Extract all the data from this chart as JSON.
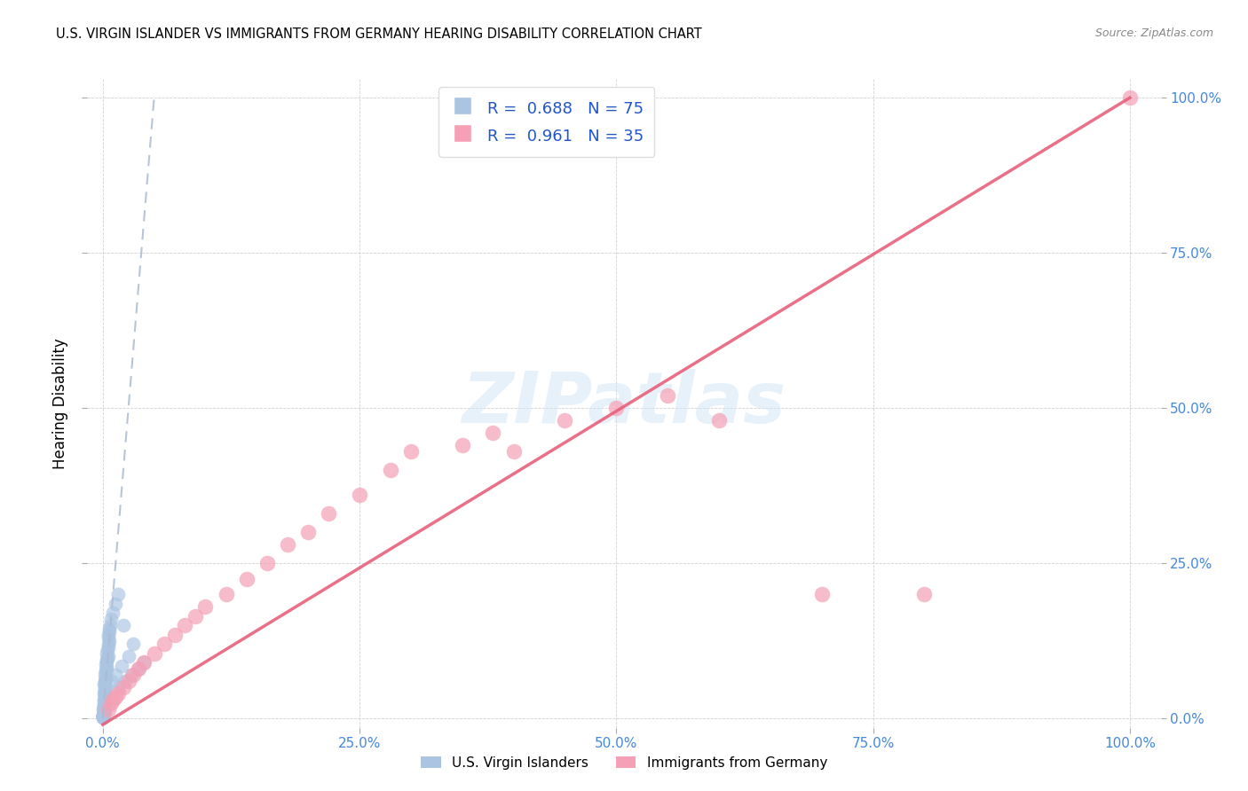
{
  "title": "U.S. VIRGIN ISLANDER VS IMMIGRANTS FROM GERMANY HEARING DISABILITY CORRELATION CHART",
  "source": "Source: ZipAtlas.com",
  "ylabel": "Hearing Disability",
  "legend_labels": [
    "U.S. Virgin Islanders",
    "Immigrants from Germany"
  ],
  "r_blue": 0.688,
  "n_blue": 75,
  "r_pink": 0.961,
  "n_pink": 35,
  "blue_color": "#aac4e2",
  "pink_color": "#f5a0b5",
  "blue_line_color": "#7799cc",
  "pink_line_color": "#e8607a",
  "tick_color": "#4488dd",
  "watermark_color": "#d0e4f5",
  "blue_dots": [
    [
      0.05,
      0.3
    ],
    [
      0.08,
      0.5
    ],
    [
      0.1,
      0.8
    ],
    [
      0.12,
      1.0
    ],
    [
      0.15,
      1.2
    ],
    [
      0.05,
      0.6
    ],
    [
      0.07,
      0.9
    ],
    [
      0.09,
      1.1
    ],
    [
      0.1,
      1.4
    ],
    [
      0.12,
      1.6
    ],
    [
      0.05,
      1.5
    ],
    [
      0.07,
      1.8
    ],
    [
      0.1,
      2.0
    ],
    [
      0.12,
      2.2
    ],
    [
      0.15,
      2.5
    ],
    [
      0.08,
      2.8
    ],
    [
      0.1,
      3.0
    ],
    [
      0.15,
      3.2
    ],
    [
      0.18,
      3.5
    ],
    [
      0.2,
      3.8
    ],
    [
      0.1,
      4.0
    ],
    [
      0.15,
      4.3
    ],
    [
      0.18,
      4.6
    ],
    [
      0.2,
      4.8
    ],
    [
      0.25,
      5.0
    ],
    [
      0.12,
      5.5
    ],
    [
      0.18,
      5.8
    ],
    [
      0.22,
      6.0
    ],
    [
      0.25,
      6.3
    ],
    [
      0.3,
      6.5
    ],
    [
      0.2,
      7.0
    ],
    [
      0.25,
      7.5
    ],
    [
      0.3,
      7.8
    ],
    [
      0.35,
      8.0
    ],
    [
      0.4,
      8.3
    ],
    [
      0.3,
      8.8
    ],
    [
      0.35,
      9.2
    ],
    [
      0.4,
      9.5
    ],
    [
      0.45,
      9.8
    ],
    [
      0.5,
      10.0
    ],
    [
      0.4,
      10.5
    ],
    [
      0.45,
      11.0
    ],
    [
      0.5,
      11.5
    ],
    [
      0.55,
      12.0
    ],
    [
      0.6,
      12.5
    ],
    [
      0.5,
      13.0
    ],
    [
      0.55,
      13.5
    ],
    [
      0.6,
      14.0
    ],
    [
      0.65,
      14.5
    ],
    [
      0.7,
      15.0
    ],
    [
      0.02,
      0.1
    ],
    [
      0.03,
      0.15
    ],
    [
      0.04,
      0.2
    ],
    [
      0.05,
      0.25
    ],
    [
      0.03,
      0.35
    ],
    [
      0.04,
      0.45
    ],
    [
      0.06,
      0.55
    ],
    [
      0.07,
      0.65
    ],
    [
      0.08,
      0.75
    ],
    [
      0.09,
      0.85
    ],
    [
      1.2,
      18.5
    ],
    [
      0.8,
      16.0
    ],
    [
      1.0,
      17.0
    ],
    [
      1.5,
      20.0
    ],
    [
      2.0,
      15.0
    ],
    [
      3.0,
      12.0
    ],
    [
      2.5,
      10.0
    ],
    [
      1.8,
      8.5
    ],
    [
      1.2,
      7.0
    ],
    [
      0.9,
      6.0
    ],
    [
      4.0,
      9.0
    ],
    [
      3.5,
      8.0
    ],
    [
      2.8,
      7.0
    ],
    [
      2.2,
      6.0
    ],
    [
      1.6,
      5.0
    ]
  ],
  "pink_dots": [
    [
      0.5,
      1.5
    ],
    [
      0.8,
      2.5
    ],
    [
      1.0,
      3.0
    ],
    [
      1.2,
      3.5
    ],
    [
      1.5,
      4.0
    ],
    [
      2.0,
      5.0
    ],
    [
      2.5,
      6.0
    ],
    [
      3.0,
      7.0
    ],
    [
      3.5,
      8.0
    ],
    [
      4.0,
      9.0
    ],
    [
      5.0,
      10.5
    ],
    [
      6.0,
      12.0
    ],
    [
      7.0,
      13.5
    ],
    [
      8.0,
      15.0
    ],
    [
      9.0,
      16.5
    ],
    [
      10.0,
      18.0
    ],
    [
      12.0,
      20.0
    ],
    [
      14.0,
      22.5
    ],
    [
      16.0,
      25.0
    ],
    [
      18.0,
      28.0
    ],
    [
      20.0,
      30.0
    ],
    [
      22.0,
      33.0
    ],
    [
      25.0,
      36.0
    ],
    [
      28.0,
      40.0
    ],
    [
      30.0,
      43.0
    ],
    [
      35.0,
      44.0
    ],
    [
      38.0,
      46.0
    ],
    [
      40.0,
      43.0
    ],
    [
      45.0,
      48.0
    ],
    [
      50.0,
      50.0
    ],
    [
      55.0,
      52.0
    ],
    [
      60.0,
      48.0
    ],
    [
      70.0,
      20.0
    ],
    [
      80.0,
      20.0
    ],
    [
      100.0,
      100.0
    ]
  ],
  "blue_line": [
    [
      0.0,
      0.0
    ],
    [
      5.0,
      100.0
    ]
  ],
  "pink_line": [
    [
      0.0,
      -1.0
    ],
    [
      100.0,
      100.0
    ]
  ],
  "xlim": [
    -1.5,
    103
  ],
  "ylim": [
    -1.5,
    103
  ],
  "xticks": [
    0,
    25,
    50,
    75,
    100
  ],
  "yticks": [
    0,
    25,
    50,
    75,
    100
  ],
  "xticklabels": [
    "0.0%",
    "25.0%",
    "50.0%",
    "75.0%",
    "100.0%"
  ],
  "yticklabels": [
    "0.0%",
    "25.0%",
    "50.0%",
    "75.0%",
    "100.0%"
  ],
  "title_fontsize": 10.5,
  "tick_fontsize": 11,
  "ylabel_fontsize": 12
}
